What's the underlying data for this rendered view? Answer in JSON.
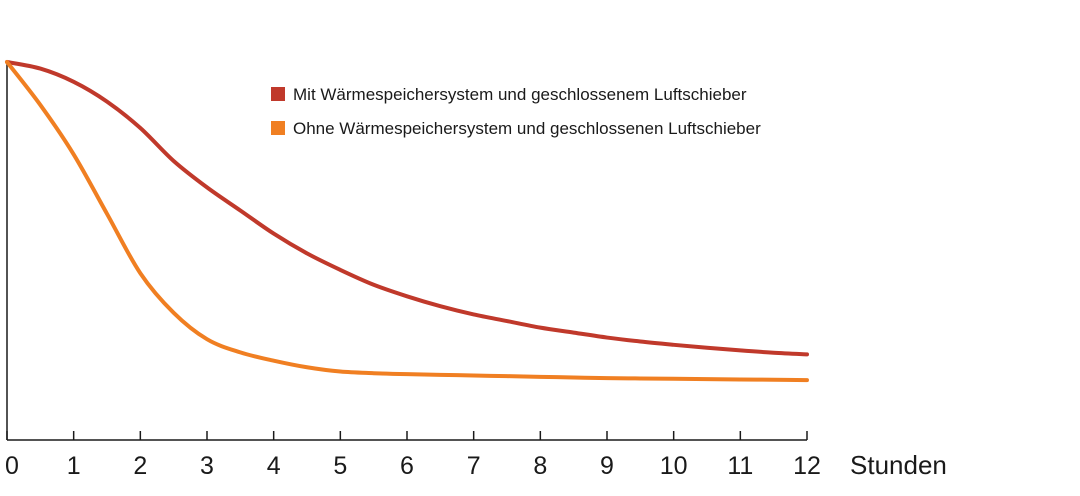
{
  "chart_data": {
    "type": "line",
    "title": "",
    "xlabel": "Stunden",
    "ylabel": "",
    "x": [
      0,
      0.5,
      1,
      1.5,
      2,
      2.5,
      3,
      3.5,
      4,
      4.5,
      5,
      5.5,
      6,
      6.5,
      7,
      7.5,
      8,
      8.5,
      9,
      9.5,
      10,
      10.5,
      11,
      11.5,
      12
    ],
    "xlim": [
      0,
      12
    ],
    "ylim": [
      0,
      100
    ],
    "xticks": [
      "0",
      "1",
      "2",
      "3",
      "4",
      "5",
      "6",
      "7",
      "8",
      "9",
      "10",
      "11",
      "12"
    ],
    "grid": false,
    "legend_position": "top-center",
    "series": [
      {
        "name": "Mit Wärmespeichersystem und geschlossenem Luftschieber",
        "color": "#c0392b",
        "values": [
          100,
          98,
          94,
          88,
          80,
          70,
          62,
          55,
          48,
          42,
          37,
          32.5,
          29,
          26,
          23.5,
          21.5,
          19.5,
          18,
          16.5,
          15.3,
          14.3,
          13.4,
          12.6,
          11.9,
          11.4
        ]
      },
      {
        "name": "Ohne Wärmespeichersystem und geschlossenen Luftschieber",
        "color": "#f07f22",
        "values": [
          100,
          87,
          72,
          54,
          36,
          24,
          16,
          12,
          9.5,
          7.5,
          6.2,
          5.7,
          5.4,
          5.2,
          5.0,
          4.8,
          4.6,
          4.4,
          4.2,
          4.1,
          4.0,
          3.9,
          3.8,
          3.7,
          3.6
        ]
      }
    ]
  }
}
